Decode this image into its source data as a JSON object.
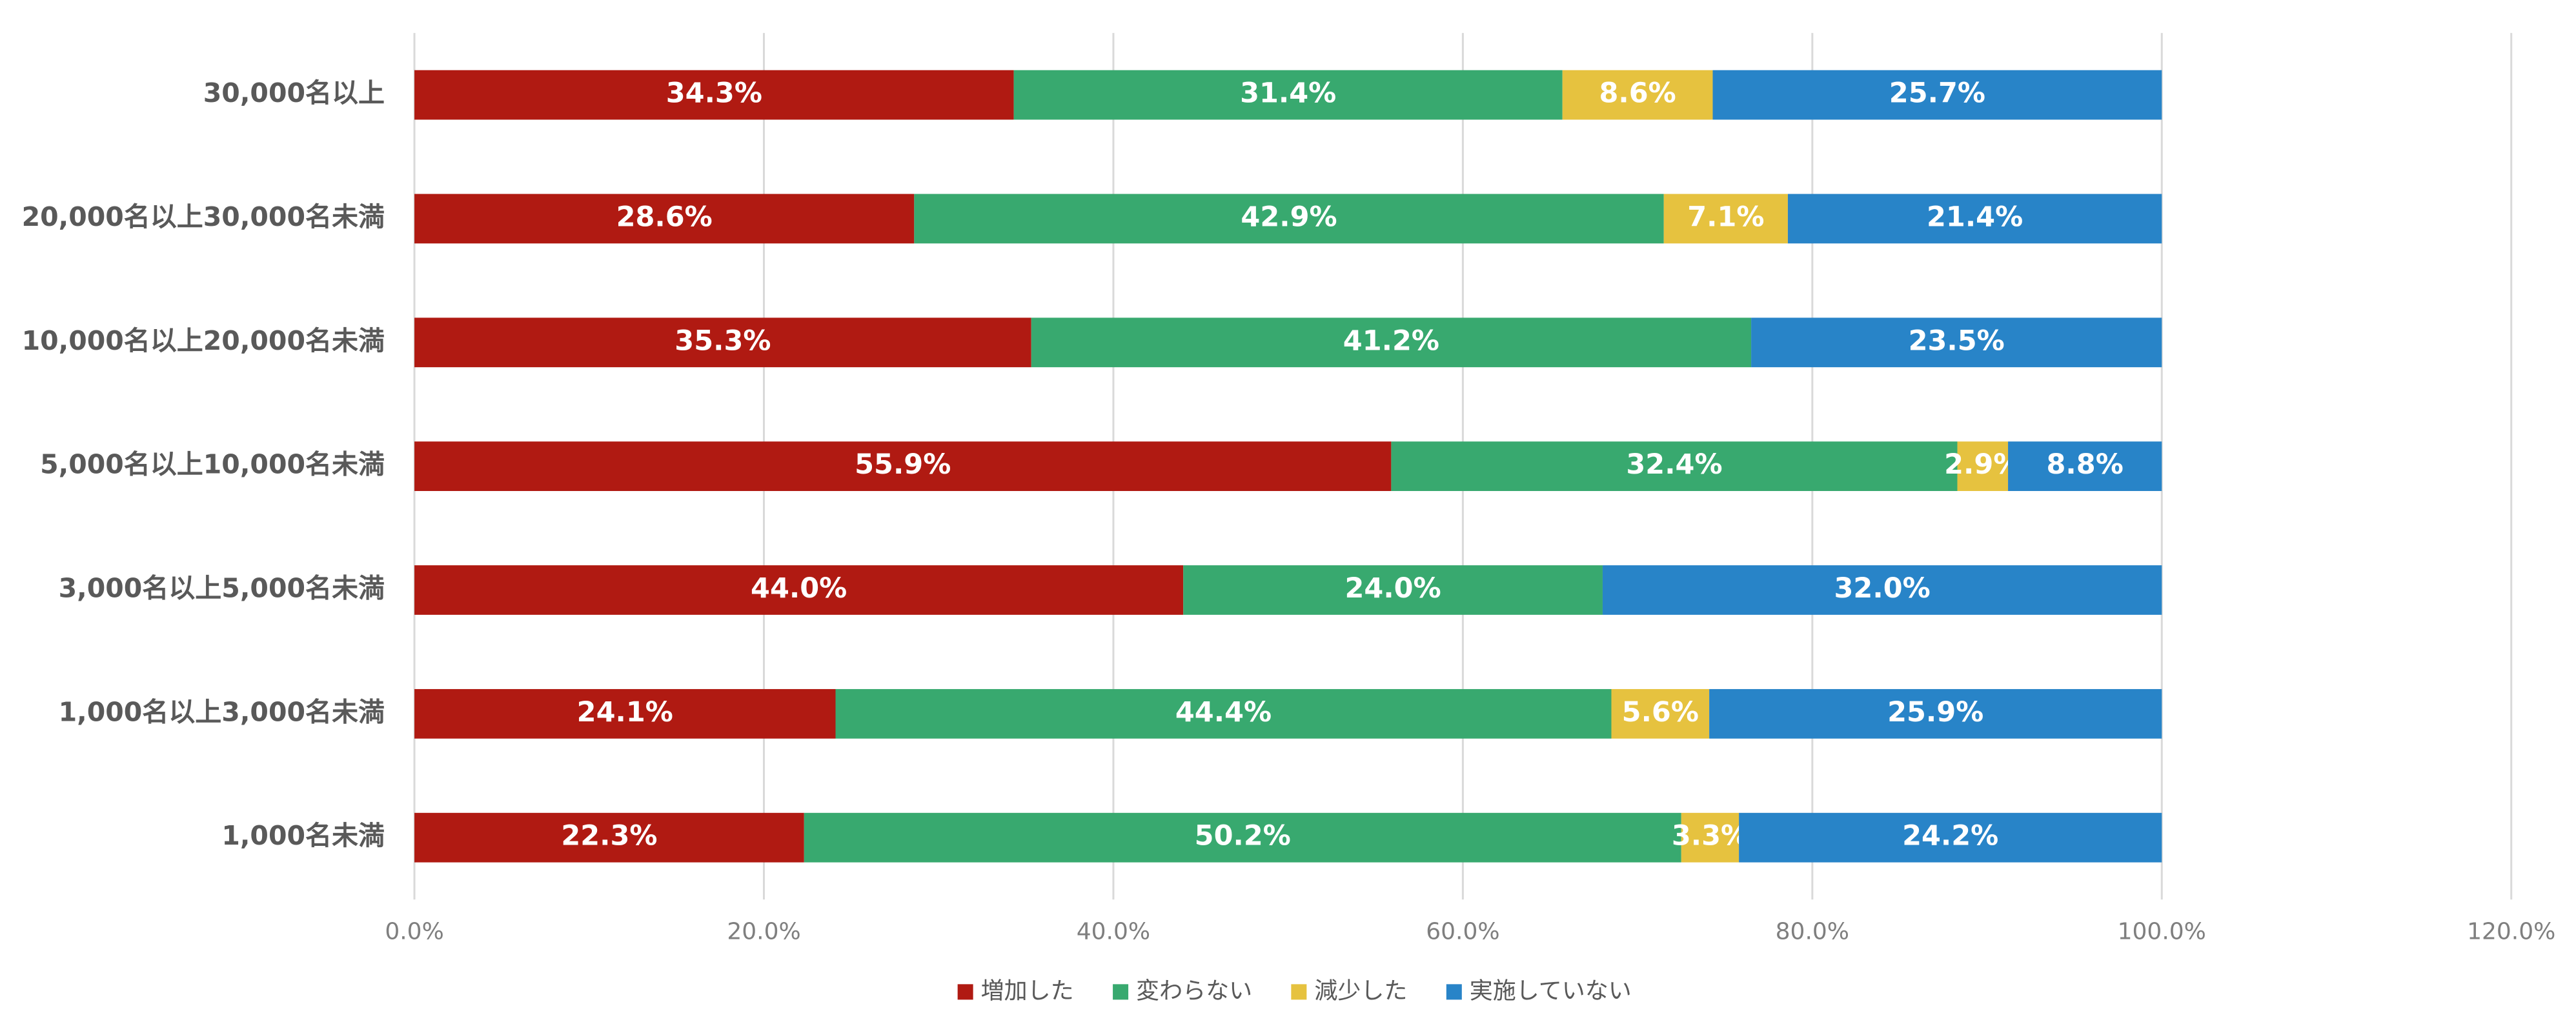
{
  "chart_data": {
    "type": "stacked-bar-horizontal",
    "categories": [
      "30,000名以上",
      "20,000名以上30,000名未満",
      "10,000名以上20,000名未満",
      "5,000名以上10,000名未満",
      "3,000名以上5,000名未満",
      "1,000名以上3,000名未満",
      "1,000名未満"
    ],
    "series": [
      {
        "name": "増加した",
        "color": "#b01a12",
        "values": [
          34.3,
          28.6,
          35.3,
          55.9,
          44.0,
          24.1,
          22.3
        ],
        "value_labels": [
          "34.3%",
          "28.6%",
          "35.3%",
          "55.9%",
          "44.0%",
          "24.1%",
          "22.3%"
        ]
      },
      {
        "name": "変わらない",
        "color": "#38a96f",
        "values": [
          31.4,
          42.9,
          41.2,
          32.4,
          24.0,
          44.4,
          50.2
        ],
        "value_labels": [
          "31.4%",
          "42.9%",
          "41.2%",
          "32.4%",
          "24.0%",
          "44.4%",
          "50.2%"
        ]
      },
      {
        "name": "減少した",
        "color": "#e6c23f",
        "values": [
          8.6,
          7.1,
          null,
          2.9,
          null,
          5.6,
          3.3
        ],
        "value_labels": [
          "8.6%",
          "7.1%",
          null,
          "2.9%",
          null,
          "5.6%",
          "3.3%"
        ]
      },
      {
        "name": "実施していない",
        "color": "#2884c8",
        "values": [
          25.7,
          21.4,
          23.5,
          8.8,
          32.0,
          25.9,
          24.2
        ],
        "value_labels": [
          "25.7%",
          "21.4%",
          "23.5%",
          "8.8%",
          "32.0%",
          "25.9%",
          "24.2%"
        ]
      }
    ],
    "xlim": [
      0,
      120
    ],
    "xticks": [
      {
        "value": 0,
        "label": "0.0%"
      },
      {
        "value": 20,
        "label": "20.0%"
      },
      {
        "value": 40,
        "label": "40.0%"
      },
      {
        "value": 60,
        "label": "60.0%"
      },
      {
        "value": 80,
        "label": "80.0%"
      },
      {
        "value": 100,
        "label": "100.0%"
      },
      {
        "value": 120,
        "label": "120.0%"
      }
    ],
    "grid": true,
    "legend": "bottom"
  }
}
